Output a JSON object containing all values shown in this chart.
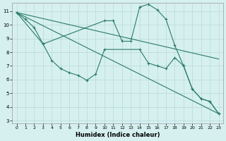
{
  "xlabel": "Humidex (Indice chaleur)",
  "bg_color": "#d6f0f0",
  "grid_color": "#b8d8d8",
  "line_color": "#2a7a6a",
  "xlim": [
    -0.5,
    23.5
  ],
  "ylim": [
    2.8,
    11.6
  ],
  "yticks": [
    3,
    4,
    5,
    6,
    7,
    8,
    9,
    10,
    11
  ],
  "xticks": [
    0,
    1,
    2,
    3,
    4,
    5,
    6,
    7,
    8,
    9,
    10,
    11,
    12,
    13,
    14,
    15,
    16,
    17,
    18,
    19,
    20,
    21,
    22,
    23
  ],
  "curve1_x": [
    0,
    1,
    2,
    3,
    10,
    11,
    12,
    13,
    14,
    15,
    16,
    17,
    18,
    19,
    20,
    21,
    22,
    23
  ],
  "curve1_y": [
    10.9,
    10.4,
    9.8,
    8.6,
    10.3,
    10.3,
    8.8,
    8.8,
    11.3,
    11.5,
    11.1,
    10.4,
    8.5,
    7.0,
    5.3,
    4.6,
    4.4,
    3.5
  ],
  "curve2_x": [
    0,
    3,
    4,
    5,
    6,
    7,
    8,
    9,
    10,
    14,
    15,
    16,
    17,
    18,
    19,
    20,
    21,
    22,
    23
  ],
  "curve2_y": [
    10.9,
    8.6,
    7.4,
    6.8,
    6.5,
    6.3,
    5.95,
    6.4,
    8.2,
    8.2,
    7.2,
    7.0,
    6.8,
    7.6,
    7.0,
    5.3,
    4.6,
    4.4,
    3.5
  ],
  "line1_x": [
    0,
    23
  ],
  "line1_y": [
    10.9,
    7.5
  ],
  "line2_x": [
    0,
    23
  ],
  "line2_y": [
    10.9,
    3.5
  ]
}
